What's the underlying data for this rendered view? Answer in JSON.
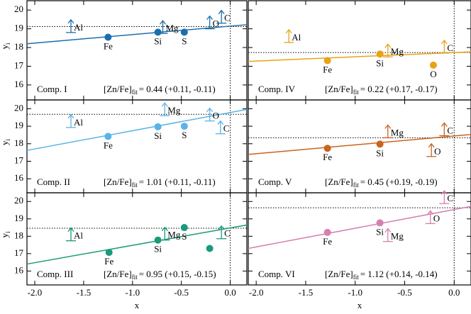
{
  "chart_data": {
    "type": "scatter",
    "xlim": [
      -2.08,
      0.17
    ],
    "ylim": [
      15.2,
      20.5
    ],
    "xticks": [
      {
        "value": -2,
        "label": "-2.0"
      },
      {
        "value": -1.5,
        "label": "-1.5"
      },
      {
        "value": -1,
        "label": "-1.0"
      },
      {
        "value": -0.5,
        "label": "-0.5"
      },
      {
        "value": 0,
        "label": "0.0"
      }
    ],
    "yticks": [
      16,
      17,
      18,
      19,
      20
    ],
    "xlabel": "x",
    "ylabel": "y",
    "ylabel_sub": "i",
    "fit_name": "[Zn/Fe]",
    "fit_sub": "fit",
    "vline": 0,
    "panels": [
      {
        "title": "Comp. I",
        "fit_value": "= 0.44 (+0.11, -0.11)",
        "color": "#1a6faf",
        "points": {
          "x": [
            -1.25,
            -0.74,
            -0.47
          ],
          "y": [
            18.55,
            18.82,
            18.82
          ],
          "labels": [
            "Fe",
            "Si",
            "S"
          ]
        },
        "limits": {
          "x": [
            -1.63,
            -0.69,
            -0.21,
            -0.09
          ],
          "y": [
            18.8,
            18.75,
            19.0,
            19.3
          ],
          "labels": [
            "Al",
            "Mg",
            "O",
            "C"
          ]
        },
        "fit": {
          "x": [
            -2.08,
            0.17
          ],
          "y": [
            18.2,
            19.22
          ]
        },
        "hline": 19.12
      },
      {
        "title": "Comp. II",
        "fit_value": "= 1.01 (+0.11, -0.11)",
        "color": "#5ab4e5",
        "points": {
          "x": [
            -1.25,
            -0.74,
            -0.47
          ],
          "y": [
            18.42,
            18.97,
            19.0
          ],
          "labels": [
            "Fe",
            "Si",
            "S"
          ]
        },
        "limits": {
          "x": [
            -1.63,
            -0.67,
            -0.21,
            -0.1
          ],
          "y": [
            18.93,
            19.6,
            19.3,
            18.57
          ],
          "labels": [
            "Al",
            "Mg",
            "O",
            "C"
          ]
        },
        "fit": {
          "x": [
            -2.08,
            0.17
          ],
          "y": [
            17.62,
            19.96
          ]
        },
        "hline": 19.68
      },
      {
        "title": "Comp. III",
        "fit_value": "= 0.95 (+0.15, -0.15)",
        "color": "#1a9a7a",
        "points": {
          "x": [
            -1.24,
            -0.74,
            -0.47,
            -0.21
          ],
          "y": [
            17.07,
            17.78,
            18.5,
            17.3
          ],
          "labels": [
            "Fe",
            "Si",
            "S",
            null
          ]
        },
        "limits": {
          "x": [
            -1.63,
            -0.67,
            -0.09
          ],
          "y": [
            17.74,
            17.78,
            17.86
          ],
          "labels": [
            "Al",
            "Mg",
            "C"
          ]
        },
        "fit": {
          "x": [
            -2.08,
            0.17
          ],
          "y": [
            16.4,
            18.65
          ]
        },
        "hline": 18.46
      },
      {
        "title": "Comp. IV",
        "fit_value": "= 0.22 (+0.17, -0.17)",
        "color": "#e8a317",
        "points": {
          "x": [
            -1.28,
            -0.75,
            -0.21
          ],
          "y": [
            17.3,
            17.65,
            17.06
          ],
          "labels": [
            "Fe",
            "Si",
            "O"
          ]
        },
        "limits": {
          "x": [
            -1.67,
            -0.67,
            -0.1
          ],
          "y": [
            18.27,
            17.5,
            17.7
          ],
          "labels": [
            "Al",
            "Mg",
            "C"
          ]
        },
        "fit": {
          "x": [
            -2.08,
            0.17
          ],
          "y": [
            17.26,
            17.77
          ]
        },
        "hline": 17.73
      },
      {
        "title": "Comp. V",
        "fit_value": "= 0.45 (+0.19, -0.19)",
        "color": "#c8641e",
        "points": {
          "x": [
            -1.28,
            -0.75
          ],
          "y": [
            17.74,
            17.98
          ],
          "labels": [
            "Fe",
            "Si"
          ]
        },
        "limits": {
          "x": [
            -0.67,
            -0.23,
            -0.1
          ],
          "y": [
            18.34,
            17.27,
            18.46
          ],
          "labels": [
            "Mg",
            "O",
            "C"
          ]
        },
        "fit": {
          "x": [
            -2.08,
            0.17
          ],
          "y": [
            17.39,
            18.53
          ]
        },
        "hline": 18.34
      },
      {
        "title": "Comp. VI",
        "fit_value": "= 1.12 (+0.14, -0.14)",
        "color": "#d77fb0",
        "points": {
          "x": [
            -1.28,
            -0.75
          ],
          "y": [
            18.22,
            18.77
          ],
          "labels": [
            "Fe",
            "Si"
          ]
        },
        "limits": {
          "x": [
            -0.67,
            -0.24,
            -0.1
          ],
          "y": [
            17.7,
            18.73,
            19.88
          ],
          "labels": [
            "Mg",
            "O",
            "C"
          ]
        },
        "fit": {
          "x": [
            -2.08,
            0.17
          ],
          "y": [
            17.3,
            19.72
          ]
        },
        "hline": 19.64
      }
    ]
  }
}
